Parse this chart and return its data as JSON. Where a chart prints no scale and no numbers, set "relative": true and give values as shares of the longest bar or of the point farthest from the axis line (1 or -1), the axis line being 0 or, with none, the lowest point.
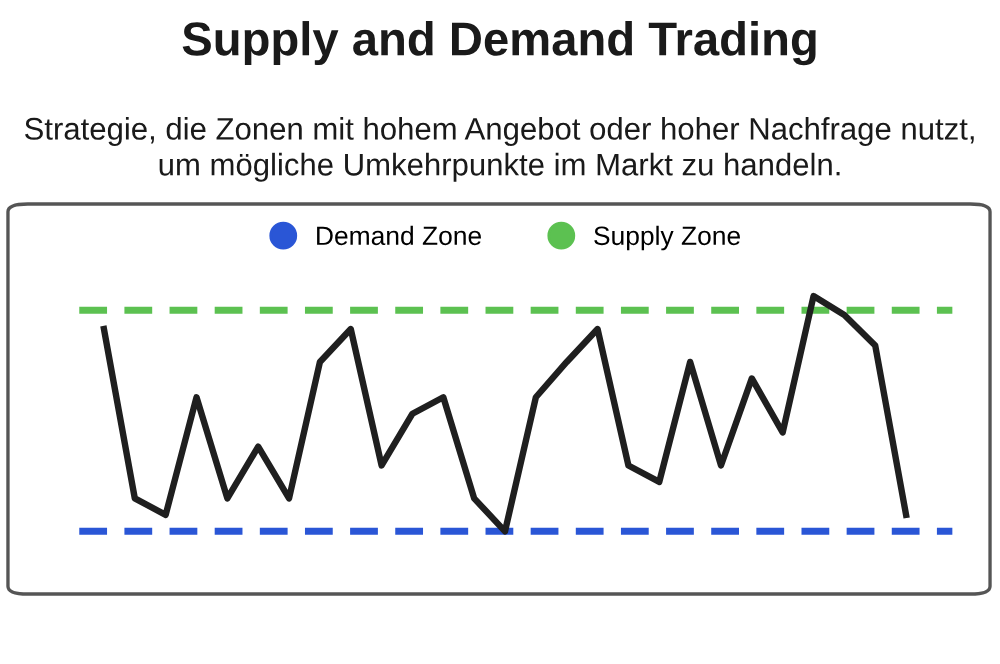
{
  "chart_data": {
    "type": "line",
    "title": "Supply and Demand Trading",
    "subtitle": "Strategie, die Zonen mit hohem Angebot oder hoher Nachfrage nutzt, um mögliche Umkehrpunkte im Markt zu handeln.",
    "relative": true,
    "categories": [
      null,
      null,
      null,
      null,
      null,
      null,
      null,
      null,
      null,
      null,
      null,
      null,
      null,
      null,
      null,
      null,
      null,
      null,
      null,
      null,
      null,
      null,
      null,
      null,
      null,
      null,
      null
    ],
    "series": [
      {
        "color": "#1f1f1f",
        "values": [
          0.86,
          0.14,
          0.07,
          0.57,
          0.14,
          0.36,
          0.14,
          0.72,
          0.86,
          0.28,
          0.5,
          0.57,
          0.14,
          0,
          0.57,
          0.72,
          0.86,
          0.28,
          0.21,
          0.72,
          0.28,
          0.65,
          0.42,
          1,
          0.92,
          0.79,
          0.07
        ]
      }
    ],
    "ref_lines": [
      {
        "axis": "y",
        "value": 0,
        "label": "Demand Zone",
        "color": "#2a56d6",
        "line_style": "dashed"
      },
      {
        "axis": "y",
        "value": 0.94,
        "label": "Supply Zone",
        "color": "#5cc151",
        "line_style": "dashed"
      }
    ],
    "legend": "top",
    "marker": "none",
    "line_style": "solid"
  }
}
